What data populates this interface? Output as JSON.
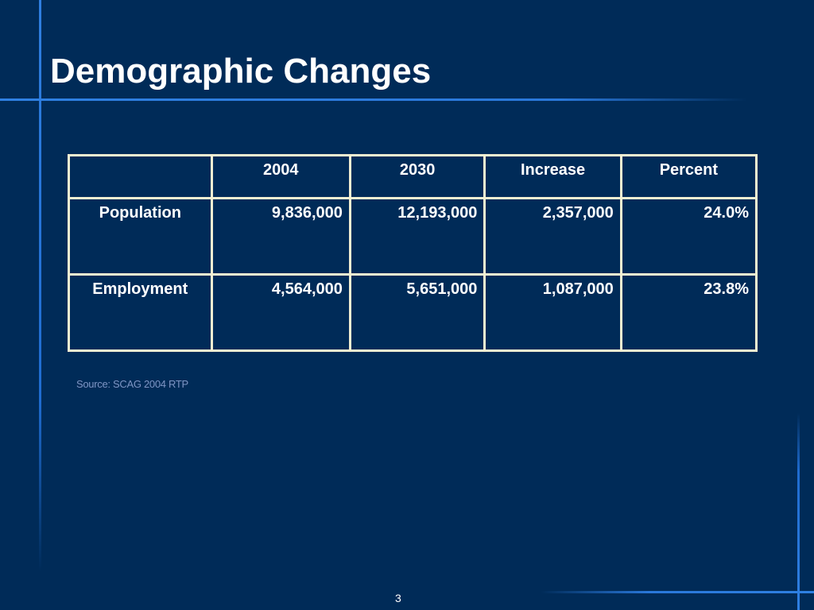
{
  "slide": {
    "title": "Demographic Changes",
    "source": "Source: SCAG 2004 RTP",
    "page_number": "3",
    "colors": {
      "background": "#002b58",
      "accent_line": "#2f80e2",
      "table_border": "#f4f0d2",
      "text": "#ffffff",
      "source_text": "#7f95c4"
    }
  },
  "table": {
    "headers": [
      "",
      "2004",
      "2030",
      "Increase",
      "Percent"
    ],
    "rows": [
      {
        "label": "Population",
        "values": [
          "9,836,000",
          "12,193,000",
          "2,357,000",
          "24.0%"
        ]
      },
      {
        "label": "Employment",
        "values": [
          "4,564,000",
          "5,651,000",
          "1,087,000",
          "23.8%"
        ]
      }
    ]
  }
}
